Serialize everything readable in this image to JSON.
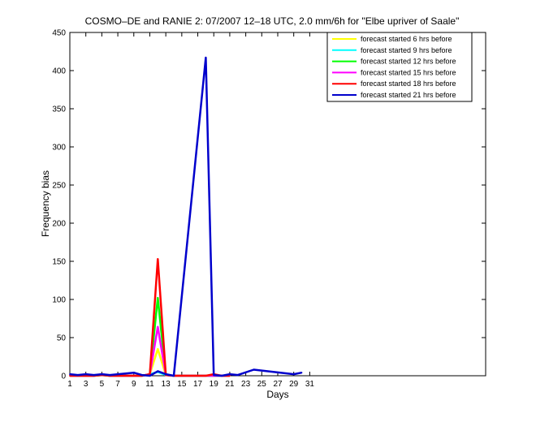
{
  "chart_data": {
    "type": "line",
    "title": "COSMO–DE and RANIE 2: 07/2007 12–18 UTC, 2.0 mm/6h for \"Elbe upriver of Saale\"",
    "xlabel": "Days",
    "ylabel": "Frequency bias",
    "xlim": [
      1,
      53
    ],
    "ylim": [
      0,
      450
    ],
    "xticks": [
      1,
      3,
      5,
      7,
      9,
      11,
      13,
      15,
      17,
      19,
      21,
      23,
      25,
      27,
      29,
      31
    ],
    "yticks": [
      0,
      50,
      100,
      150,
      200,
      250,
      300,
      350,
      400,
      450
    ],
    "legend_position": "top-right",
    "series": [
      {
        "name": "forecast started 6 hrs before",
        "color": "#ffff00",
        "x": [
          1,
          2,
          3,
          4,
          5,
          6,
          9,
          10,
          11,
          12,
          13,
          14,
          18,
          19,
          20,
          21
        ],
        "y": [
          0,
          0,
          0,
          0,
          1,
          0,
          0,
          0,
          2,
          35,
          1,
          0,
          0,
          0,
          0,
          0
        ]
      },
      {
        "name": "forecast started 9 hrs before",
        "color": "#00ffff",
        "x": [
          1,
          2,
          3,
          4,
          5,
          6,
          9,
          10,
          11,
          12,
          13,
          14,
          18,
          19,
          20,
          21
        ],
        "y": [
          0,
          0,
          0,
          0,
          1,
          0,
          0,
          0,
          2,
          5,
          1,
          0,
          0,
          0,
          0,
          0
        ]
      },
      {
        "name": "forecast started 12 hrs before",
        "color": "#00ff00",
        "x": [
          1,
          2,
          3,
          4,
          5,
          6,
          9,
          10,
          11,
          12,
          13,
          14,
          18,
          19,
          20,
          21
        ],
        "y": [
          0,
          0,
          0,
          0,
          1,
          0,
          0,
          0,
          2,
          102,
          1,
          0,
          0,
          0,
          0,
          0
        ]
      },
      {
        "name": "forecast started 15 hrs before",
        "color": "#ff00ff",
        "x": [
          1,
          2,
          3,
          4,
          5,
          6,
          9,
          10,
          11,
          12,
          13,
          14,
          18,
          19,
          20,
          21
        ],
        "y": [
          0,
          0,
          0,
          0,
          2,
          0,
          0,
          0,
          2,
          64,
          1,
          0,
          0,
          0,
          0,
          0
        ]
      },
      {
        "name": "forecast started 18 hrs before",
        "color": "#ff0000",
        "x": [
          1,
          2,
          3,
          4,
          5,
          6,
          9,
          10,
          11,
          12,
          13,
          14,
          18,
          19,
          20,
          21
        ],
        "y": [
          0,
          0,
          0,
          0,
          1,
          0,
          0,
          0,
          2,
          153,
          1,
          0,
          0,
          2,
          0,
          0
        ]
      },
      {
        "name": "forecast started 21 hrs before",
        "color": "#0000cc",
        "x": [
          1,
          2,
          3,
          4,
          5,
          6,
          9,
          10,
          11,
          12,
          13,
          14,
          18,
          19,
          20,
          21,
          22,
          24,
          29,
          30
        ],
        "y": [
          2,
          1,
          2,
          1,
          2,
          1,
          4,
          1,
          0,
          6,
          2,
          0,
          417,
          1,
          0,
          2,
          1,
          8,
          2,
          4
        ]
      }
    ]
  }
}
